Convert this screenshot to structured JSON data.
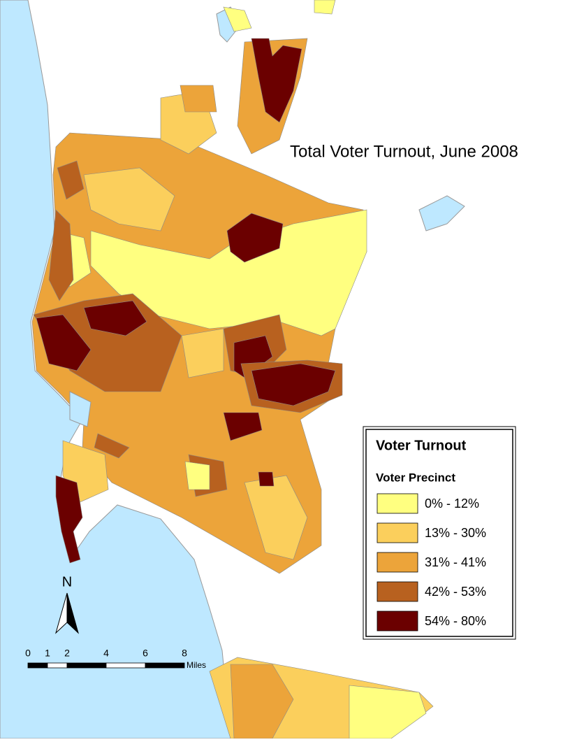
{
  "title": "Total Voter Turnout, June 2008",
  "legend": {
    "title": "Voter Turnout",
    "subtitle": "Voter Precinct",
    "items": [
      {
        "label": "0% - 12%",
        "color": "#ffff80"
      },
      {
        "label": "13% - 30%",
        "color": "#fbcf5c"
      },
      {
        "label": "31% - 41%",
        "color": "#eca43a"
      },
      {
        "label": "42% - 53%",
        "color": "#b8611f"
      },
      {
        "label": "54% - 80%",
        "color": "#6b0000"
      }
    ]
  },
  "north_arrow": {
    "label": "N"
  },
  "scale_bar": {
    "ticks": [
      0,
      1,
      2,
      4,
      6,
      8
    ],
    "unit": "Miles"
  }
}
